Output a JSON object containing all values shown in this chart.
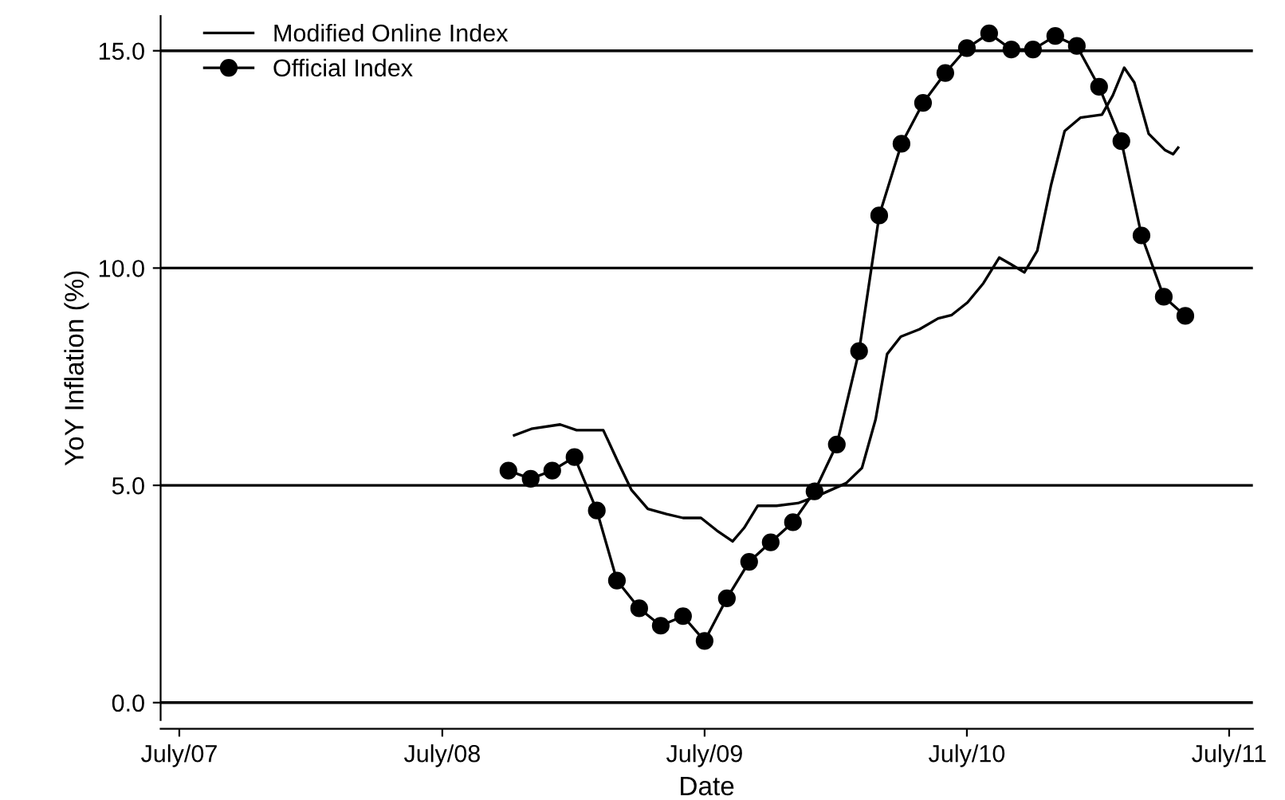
{
  "chart_data": {
    "type": "line",
    "xlabel": "Date",
    "ylabel": "YoY Inflation (%)",
    "xlim": [
      "2007-06-05",
      "2011-08-03"
    ],
    "ylim": [
      -0.4,
      15.8
    ],
    "xticks": [
      {
        "value": "2007-07-01",
        "label": "July/07"
      },
      {
        "value": "2008-07-01",
        "label": "July/08"
      },
      {
        "value": "2009-07-01",
        "label": "July/09"
      },
      {
        "value": "2010-07-01",
        "label": "July/10"
      },
      {
        "value": "2011-07-01",
        "label": "July/11"
      }
    ],
    "yticks": [
      {
        "value": 0,
        "label": "0.0"
      },
      {
        "value": 5,
        "label": "5.0"
      },
      {
        "value": 10,
        "label": "10.0"
      },
      {
        "value": 15,
        "label": "15.0"
      }
    ],
    "grid": "y",
    "legend": "top left",
    "series": [
      {
        "name": "Modified Online Index",
        "color": "#000000",
        "marker": "none",
        "x": [
          "2008-10-09",
          "2008-11-02",
          "2008-12-12",
          "2009-01-04",
          "2009-02-10",
          "2009-03-03",
          "2009-03-21",
          "2009-04-13",
          "2009-05-09",
          "2009-06-01",
          "2009-06-26",
          "2009-07-18",
          "2009-08-09",
          "2009-08-25",
          "2009-09-13",
          "2009-10-09",
          "2009-11-08",
          "2009-12-07",
          "2010-01-14",
          "2010-02-05",
          "2010-02-24",
          "2010-03-12",
          "2010-03-31",
          "2010-04-26",
          "2010-05-22",
          "2010-06-10",
          "2010-07-02",
          "2010-07-24",
          "2010-08-15",
          "2010-08-31",
          "2010-09-19",
          "2010-10-07",
          "2010-10-26",
          "2010-11-14",
          "2010-12-06",
          "2011-01-05",
          "2011-01-20",
          "2011-02-05",
          "2011-02-19",
          "2011-03-11",
          "2011-04-03",
          "2011-04-14",
          "2011-04-21"
        ],
        "values": [
          6.15,
          6.3,
          6.4,
          6.27,
          6.27,
          5.52,
          4.9,
          4.46,
          4.34,
          4.25,
          4.25,
          3.96,
          3.71,
          4.02,
          4.53,
          4.53,
          4.59,
          4.77,
          5.05,
          5.4,
          6.52,
          8.02,
          8.42,
          8.59,
          8.84,
          8.92,
          9.21,
          9.65,
          10.24,
          10.09,
          9.9,
          10.4,
          11.9,
          13.15,
          13.46,
          13.53,
          13.97,
          14.61,
          14.27,
          13.09,
          12.71,
          12.62,
          12.77
        ]
      },
      {
        "name": "Official Index",
        "color": "#000000",
        "marker": "circle",
        "x": [
          "2008-10",
          "2008-11",
          "2008-12",
          "2009-01",
          "2009-02",
          "2009-03",
          "2009-04",
          "2009-05",
          "2009-06",
          "2009-07",
          "2009-08",
          "2009-09",
          "2009-10",
          "2009-11",
          "2009-12",
          "2010-01",
          "2010-02",
          "2010-03",
          "2010-04",
          "2010-05",
          "2010-06",
          "2010-07",
          "2010-08",
          "2010-09",
          "2010-10",
          "2010-11",
          "2010-12",
          "2011-01",
          "2011-02",
          "2011-03",
          "2011-04",
          "2011-05"
        ],
        "values": [
          5.34,
          5.15,
          5.34,
          5.65,
          4.42,
          2.81,
          2.17,
          1.77,
          1.99,
          1.42,
          2.4,
          3.24,
          3.69,
          4.15,
          4.86,
          5.94,
          8.09,
          11.21,
          12.86,
          13.8,
          14.49,
          15.06,
          15.4,
          15.03,
          15.03,
          15.34,
          15.11,
          14.17,
          12.92,
          10.75,
          9.34,
          8.9
        ]
      }
    ]
  }
}
